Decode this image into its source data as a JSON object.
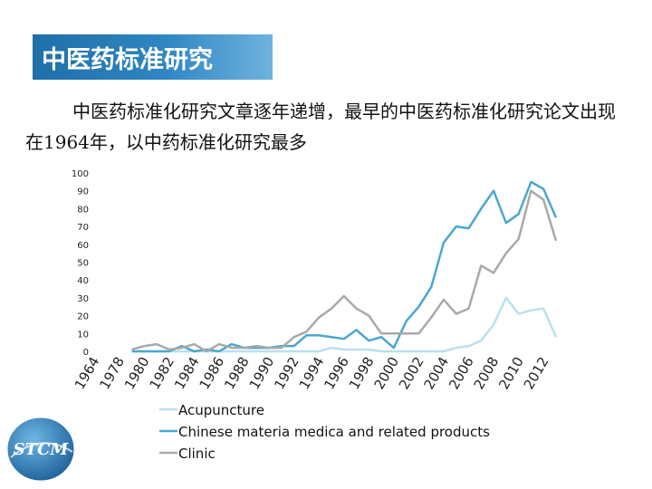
{
  "header": {
    "title": "中医药标准研究"
  },
  "description": "中医药标准化研究文章逐年递增，最早的中医药标准化研究论文出现在1964年，以中药标准化研究最多",
  "logo": {
    "text": "STCM"
  },
  "colors": {
    "acupuncture": "#b9e0f0",
    "chinese_materia_medica": "#4aa7cf",
    "clinic": "#a9a9a9",
    "banner": "#2f86c2"
  },
  "chart_data": {
    "type": "line",
    "ylim": [
      0,
      100
    ],
    "yticks": [
      0,
      10,
      20,
      30,
      40,
      50,
      60,
      70,
      80,
      90,
      100
    ],
    "xlim": [
      1964,
      2012
    ],
    "xticks": [
      "1964",
      "1978",
      "1980",
      "1982",
      "1984",
      "1986",
      "1988",
      "1990",
      "1992",
      "1994",
      "1996",
      "1998",
      "2000",
      "2002",
      "2004",
      "2006",
      "2008",
      "2010",
      "2012"
    ],
    "x": [
      1978,
      1979,
      1980,
      1981,
      1982,
      1983,
      1984,
      1985,
      1986,
      1987,
      1988,
      1989,
      1990,
      1991,
      1992,
      1993,
      1994,
      1995,
      1996,
      1997,
      1998,
      1999,
      2000,
      2001,
      2002,
      2003,
      2004,
      2005,
      2006,
      2007,
      2008,
      2009,
      2010,
      2011,
      2012
    ],
    "series": [
      {
        "name": "Acupuncture",
        "color": "#b9e0f0",
        "values": [
          0,
          0,
          0,
          0,
          0,
          0,
          0,
          0,
          0,
          0,
          0,
          0,
          0,
          0,
          0,
          0,
          2,
          1,
          1,
          1,
          0,
          0,
          0,
          0,
          0,
          0,
          2,
          3,
          6,
          15,
          30,
          21,
          23,
          24,
          8
        ]
      },
      {
        "name": "Chinese materia medica and related products",
        "color": "#4aa7cf",
        "values": [
          0,
          0,
          0,
          0,
          3,
          0,
          1,
          0,
          4,
          2,
          2,
          2,
          3,
          3,
          9,
          9,
          8,
          7,
          12,
          6,
          8,
          2,
          17,
          25,
          36,
          61,
          70,
          69,
          80,
          90,
          72,
          77,
          95,
          91,
          75
        ]
      },
      {
        "name": "Clinic",
        "color": "#a9a9a9",
        "values": [
          1,
          3,
          4,
          1,
          2,
          4,
          0,
          4,
          2,
          2,
          3,
          2,
          2,
          8,
          11,
          19,
          24,
          31,
          24,
          20,
          10,
          10,
          10,
          10,
          19,
          29,
          21,
          24,
          48,
          44,
          55,
          63,
          90,
          85,
          62
        ]
      }
    ]
  }
}
